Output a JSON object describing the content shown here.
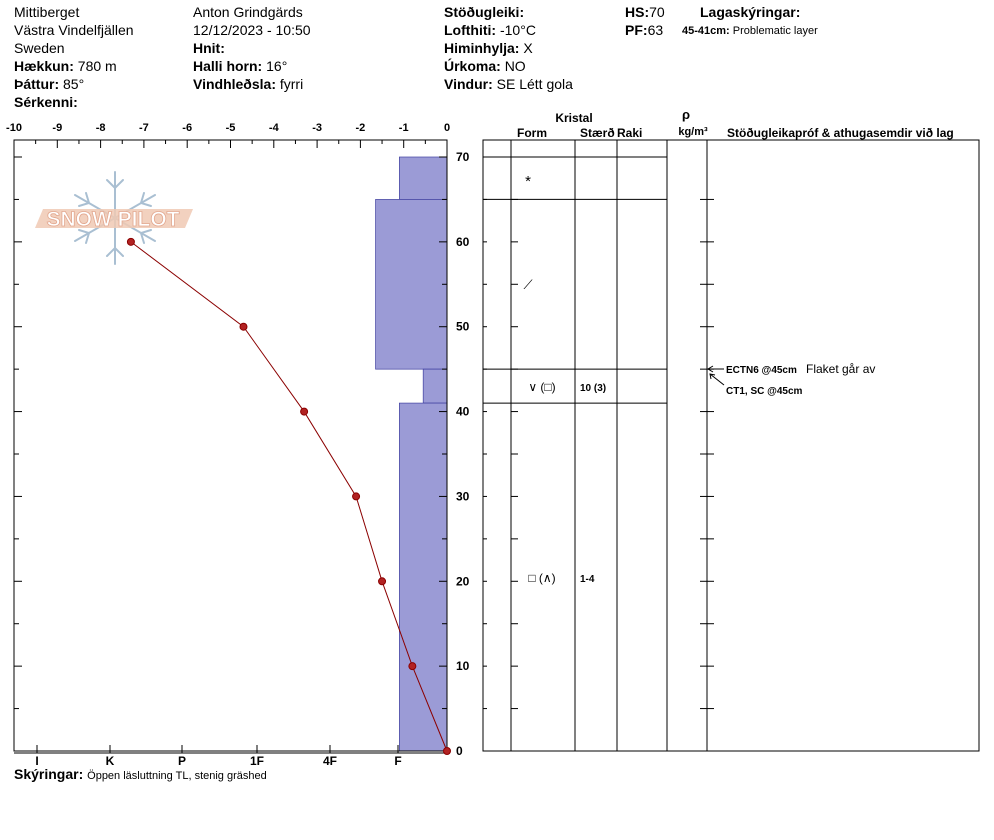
{
  "header": {
    "location": "Mittiberget",
    "area": "Västra Vindelfjällen",
    "country": "Sweden",
    "elevation_label": "Hækkun:",
    "elevation_value": "780 m",
    "aspect_label": "Þáttur:",
    "aspect_value": "85°",
    "features_label": "Sérkenni:",
    "observer": "Anton Grindgärds",
    "datetime": "12/12/2023 - 10:50",
    "coords_label": "Hnit:",
    "slope_label": "Halli horn:",
    "slope_value": "16°",
    "wind_loading_label": "Vindhleðsla:",
    "wind_loading_value": "fyrri",
    "stability_label": "Stöðugleiki:",
    "air_temp_label": "Lofthiti:",
    "air_temp_value": "-10°C",
    "sky_label": "Himinhylja:",
    "sky_value": "X",
    "precip_label": "Úrkoma:",
    "precip_value": "NO",
    "wind_label": "Vindur:",
    "wind_value": "SE Létt gola",
    "hs_label": "HS:",
    "hs_value": "70",
    "pf_label": "PF:",
    "pf_value": "63",
    "layer_notes_label": "Lagaskýringar:",
    "layer_note_range": "45-41cm:",
    "layer_note_text": "Problematic layer"
  },
  "logo_text": "SNOW PILOT",
  "footer": {
    "notes_label": "Skýringar:",
    "notes_text": "Öppen läsluttning TL, stenig gräshed"
  },
  "table_headers": {
    "crystal": "Kristal",
    "form": "Form",
    "size": "Stærð",
    "moisture": "Raki",
    "rho": "ρ",
    "density_unit": "kg/m³",
    "tests": "Stöðugleikapróf & athugasemdir við lag"
  },
  "layer_rows": [
    {
      "form": "*",
      "size": ""
    },
    {
      "form": "⟋",
      "size": ""
    },
    {
      "form": "∨ (□)",
      "size": "10 (3)"
    },
    {
      "form": "□ (∧)",
      "size": "1-4"
    }
  ],
  "tests": [
    {
      "code": "ECTN6 @45cm",
      "comment": "Flaket går av"
    },
    {
      "code": "CT1, SC @45cm",
      "comment": ""
    }
  ],
  "colors": {
    "hardness_fill": "#9b9bd6",
    "temp_line": "#8b0000",
    "temp_point": "#b22222"
  },
  "chart_data": {
    "type": "line",
    "temperature_axis": {
      "ticks": [
        "-10",
        "-9",
        "-8",
        "-7",
        "-6",
        "-5",
        "-4",
        "-3",
        "-2",
        "-1",
        "0"
      ],
      "range": [
        -10,
        0
      ]
    },
    "height_axis": {
      "ticks": [
        "0",
        "10",
        "20",
        "30",
        "40",
        "50",
        "60",
        "70"
      ],
      "range": [
        0,
        70
      ]
    },
    "hardness_axis": {
      "ticks": [
        "I",
        "K",
        "P",
        "1F",
        "4F",
        "F"
      ]
    },
    "temperature_profile": [
      {
        "height": 0,
        "temp": 0
      },
      {
        "height": 10,
        "temp": -0.8
      },
      {
        "height": 20,
        "temp": -1.5
      },
      {
        "height": 30,
        "temp": -2.1
      },
      {
        "height": 40,
        "temp": -3.3
      },
      {
        "height": 50,
        "temp": -4.7
      },
      {
        "height": 60,
        "temp": -7.3
      }
    ],
    "hardness_layers": [
      {
        "top": 70,
        "bottom": 65,
        "temp_equiv": -1.1
      },
      {
        "top": 65,
        "bottom": 45,
        "temp_equiv": -1.65
      },
      {
        "top": 45,
        "bottom": 41,
        "temp_equiv": -0.55
      },
      {
        "top": 41,
        "bottom": 0,
        "temp_equiv": -1.1
      }
    ]
  }
}
